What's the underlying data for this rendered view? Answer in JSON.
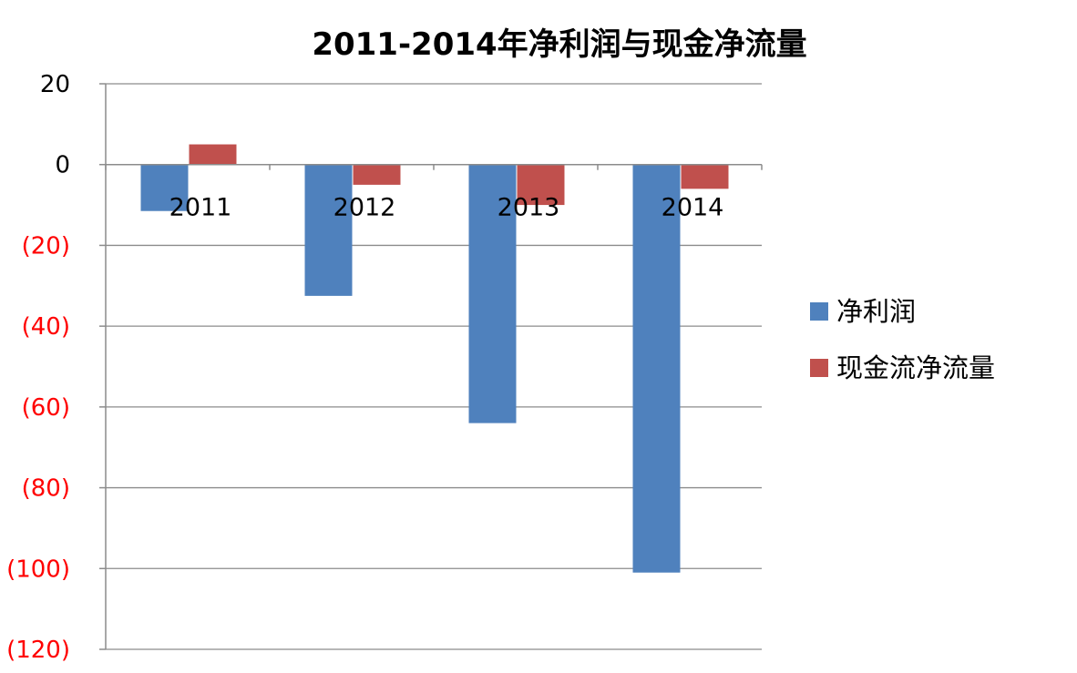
{
  "chart_data": {
    "type": "bar",
    "title": "2011-2014年净利润与现金净流量",
    "categories": [
      "2011",
      "2012",
      "2013",
      "2014"
    ],
    "series": [
      {
        "name": "净利润",
        "values": [
          -11.5,
          -32.5,
          -64,
          -101
        ],
        "color": "#4F81BD"
      },
      {
        "name": "现金流净流量",
        "values": [
          5,
          -5,
          -10,
          -6
        ],
        "color": "#C0504D"
      }
    ],
    "ylim": [
      -120,
      20
    ],
    "yticks": [
      20,
      0,
      -20,
      -40,
      -60,
      -80,
      -100,
      -120
    ],
    "ytick_labels": [
      "20",
      "0",
      "(20)",
      "(40)",
      "(60)",
      "(80)",
      "(100)",
      "(120)"
    ],
    "negative_tick_color": "#FF0000",
    "positive_tick_color": "#000000",
    "grid": true,
    "legend_position": "right",
    "xlabel": "",
    "ylabel": ""
  }
}
